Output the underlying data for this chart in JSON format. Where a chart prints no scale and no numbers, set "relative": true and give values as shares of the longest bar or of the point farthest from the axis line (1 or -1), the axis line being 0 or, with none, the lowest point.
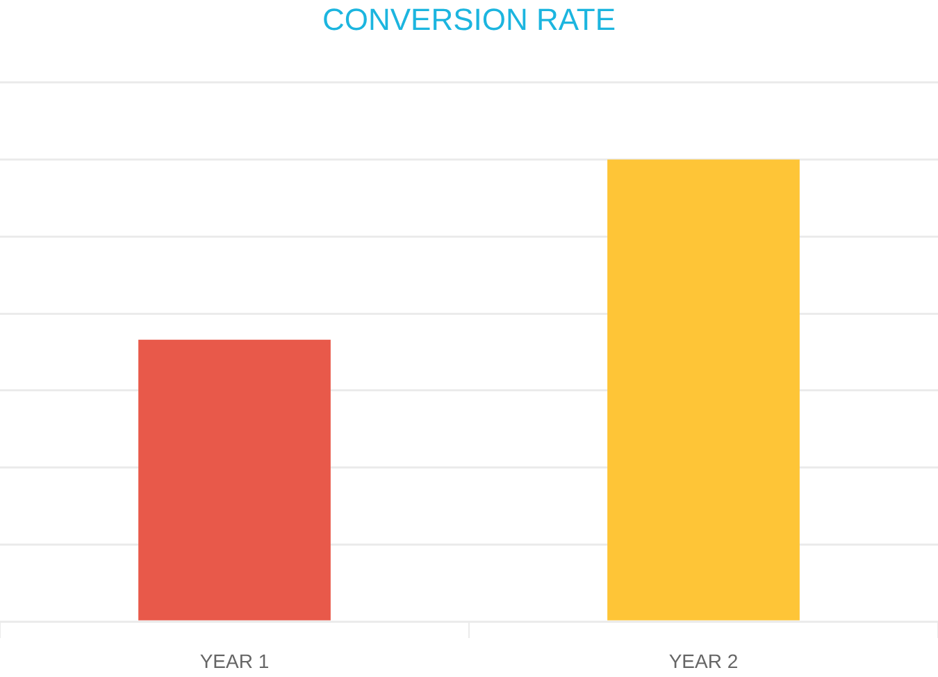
{
  "chart_data": {
    "type": "bar",
    "title": "CONVERSION RATE",
    "categories": [
      "YEAR 1",
      "YEAR 2"
    ],
    "values": [
      0.61,
      1
    ],
    "colors": [
      "#e8594a",
      "#fec537"
    ],
    "relative": true,
    "grid": "y"
  }
}
